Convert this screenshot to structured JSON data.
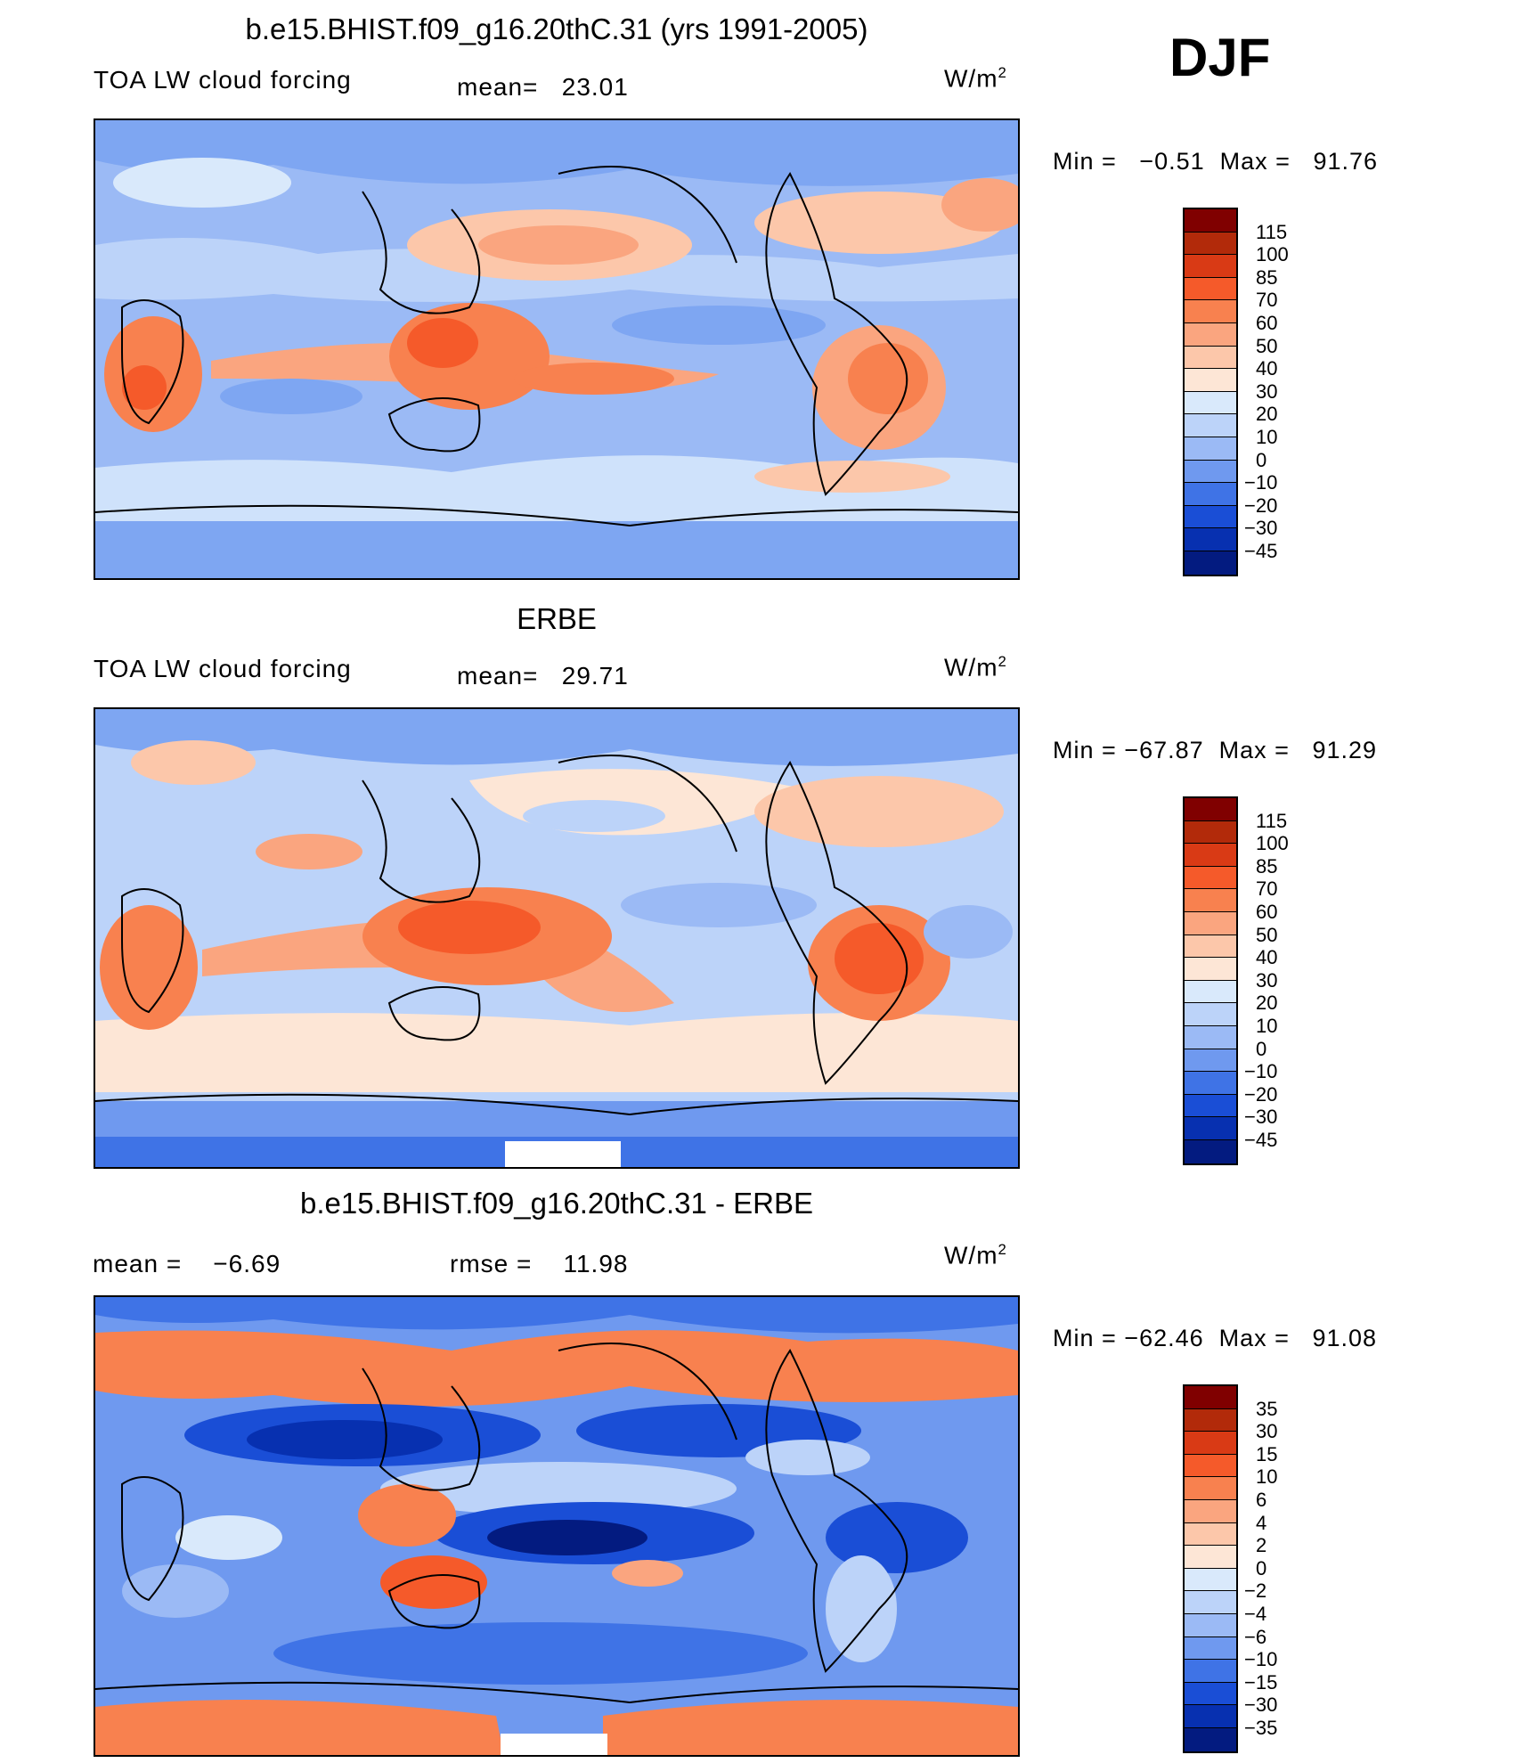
{
  "season": "DJF",
  "unit": "W/m",
  "unit_exp": "2",
  "panels": [
    {
      "title": "b.e15.BHIST.f09_g16.20thC.31 (yrs 1991-2005)",
      "left_label": "TOA LW cloud forcing",
      "mid_label": "mean=",
      "mid_value": "23.01",
      "min_label": "Min =",
      "min_value": "−0.51",
      "max_label": "Max =",
      "max_value": "91.76",
      "colorbar_levels": [
        "115",
        "100",
        "85",
        "70",
        "60",
        "50",
        "40",
        "30",
        "20",
        "10",
        "0",
        "−10",
        "−20",
        "−30",
        "−45"
      ]
    },
    {
      "title": "ERBE",
      "left_label": "TOA LW cloud forcing",
      "mid_label": "mean=",
      "mid_value": "29.71",
      "min_label": "Min =",
      "min_value": "−67.87",
      "max_label": "Max =",
      "max_value": "91.29",
      "colorbar_levels": [
        "115",
        "100",
        "85",
        "70",
        "60",
        "50",
        "40",
        "30",
        "20",
        "10",
        "0",
        "−10",
        "−20",
        "−30",
        "−45"
      ]
    },
    {
      "title": "b.e15.BHIST.f09_g16.20thC.31 - ERBE",
      "left_label": "mean =",
      "left_value": "−6.69",
      "mid_label": "rmse =",
      "mid_value": "11.98",
      "min_label": "Min =",
      "min_value": "−62.46",
      "max_label": "Max =",
      "max_value": "91.08",
      "colorbar_levels": [
        "35",
        "30",
        "15",
        "10",
        "6",
        "4",
        "2",
        "0",
        "−2",
        "−4",
        "−6",
        "−10",
        "−15",
        "−30",
        "−35"
      ]
    }
  ],
  "colorbar_colors": [
    "#800000",
    "#b22a0a",
    "#d93a15",
    "#f55a2a",
    "#f8814f",
    "#faa57f",
    "#fcc7aa",
    "#fde6d6",
    "#d9e9fb",
    "#bcd3f9",
    "#9bbaf5",
    "#6f99ef",
    "#3f73e6",
    "#1a4ed6",
    "#0730b0",
    "#031b80"
  ]
}
